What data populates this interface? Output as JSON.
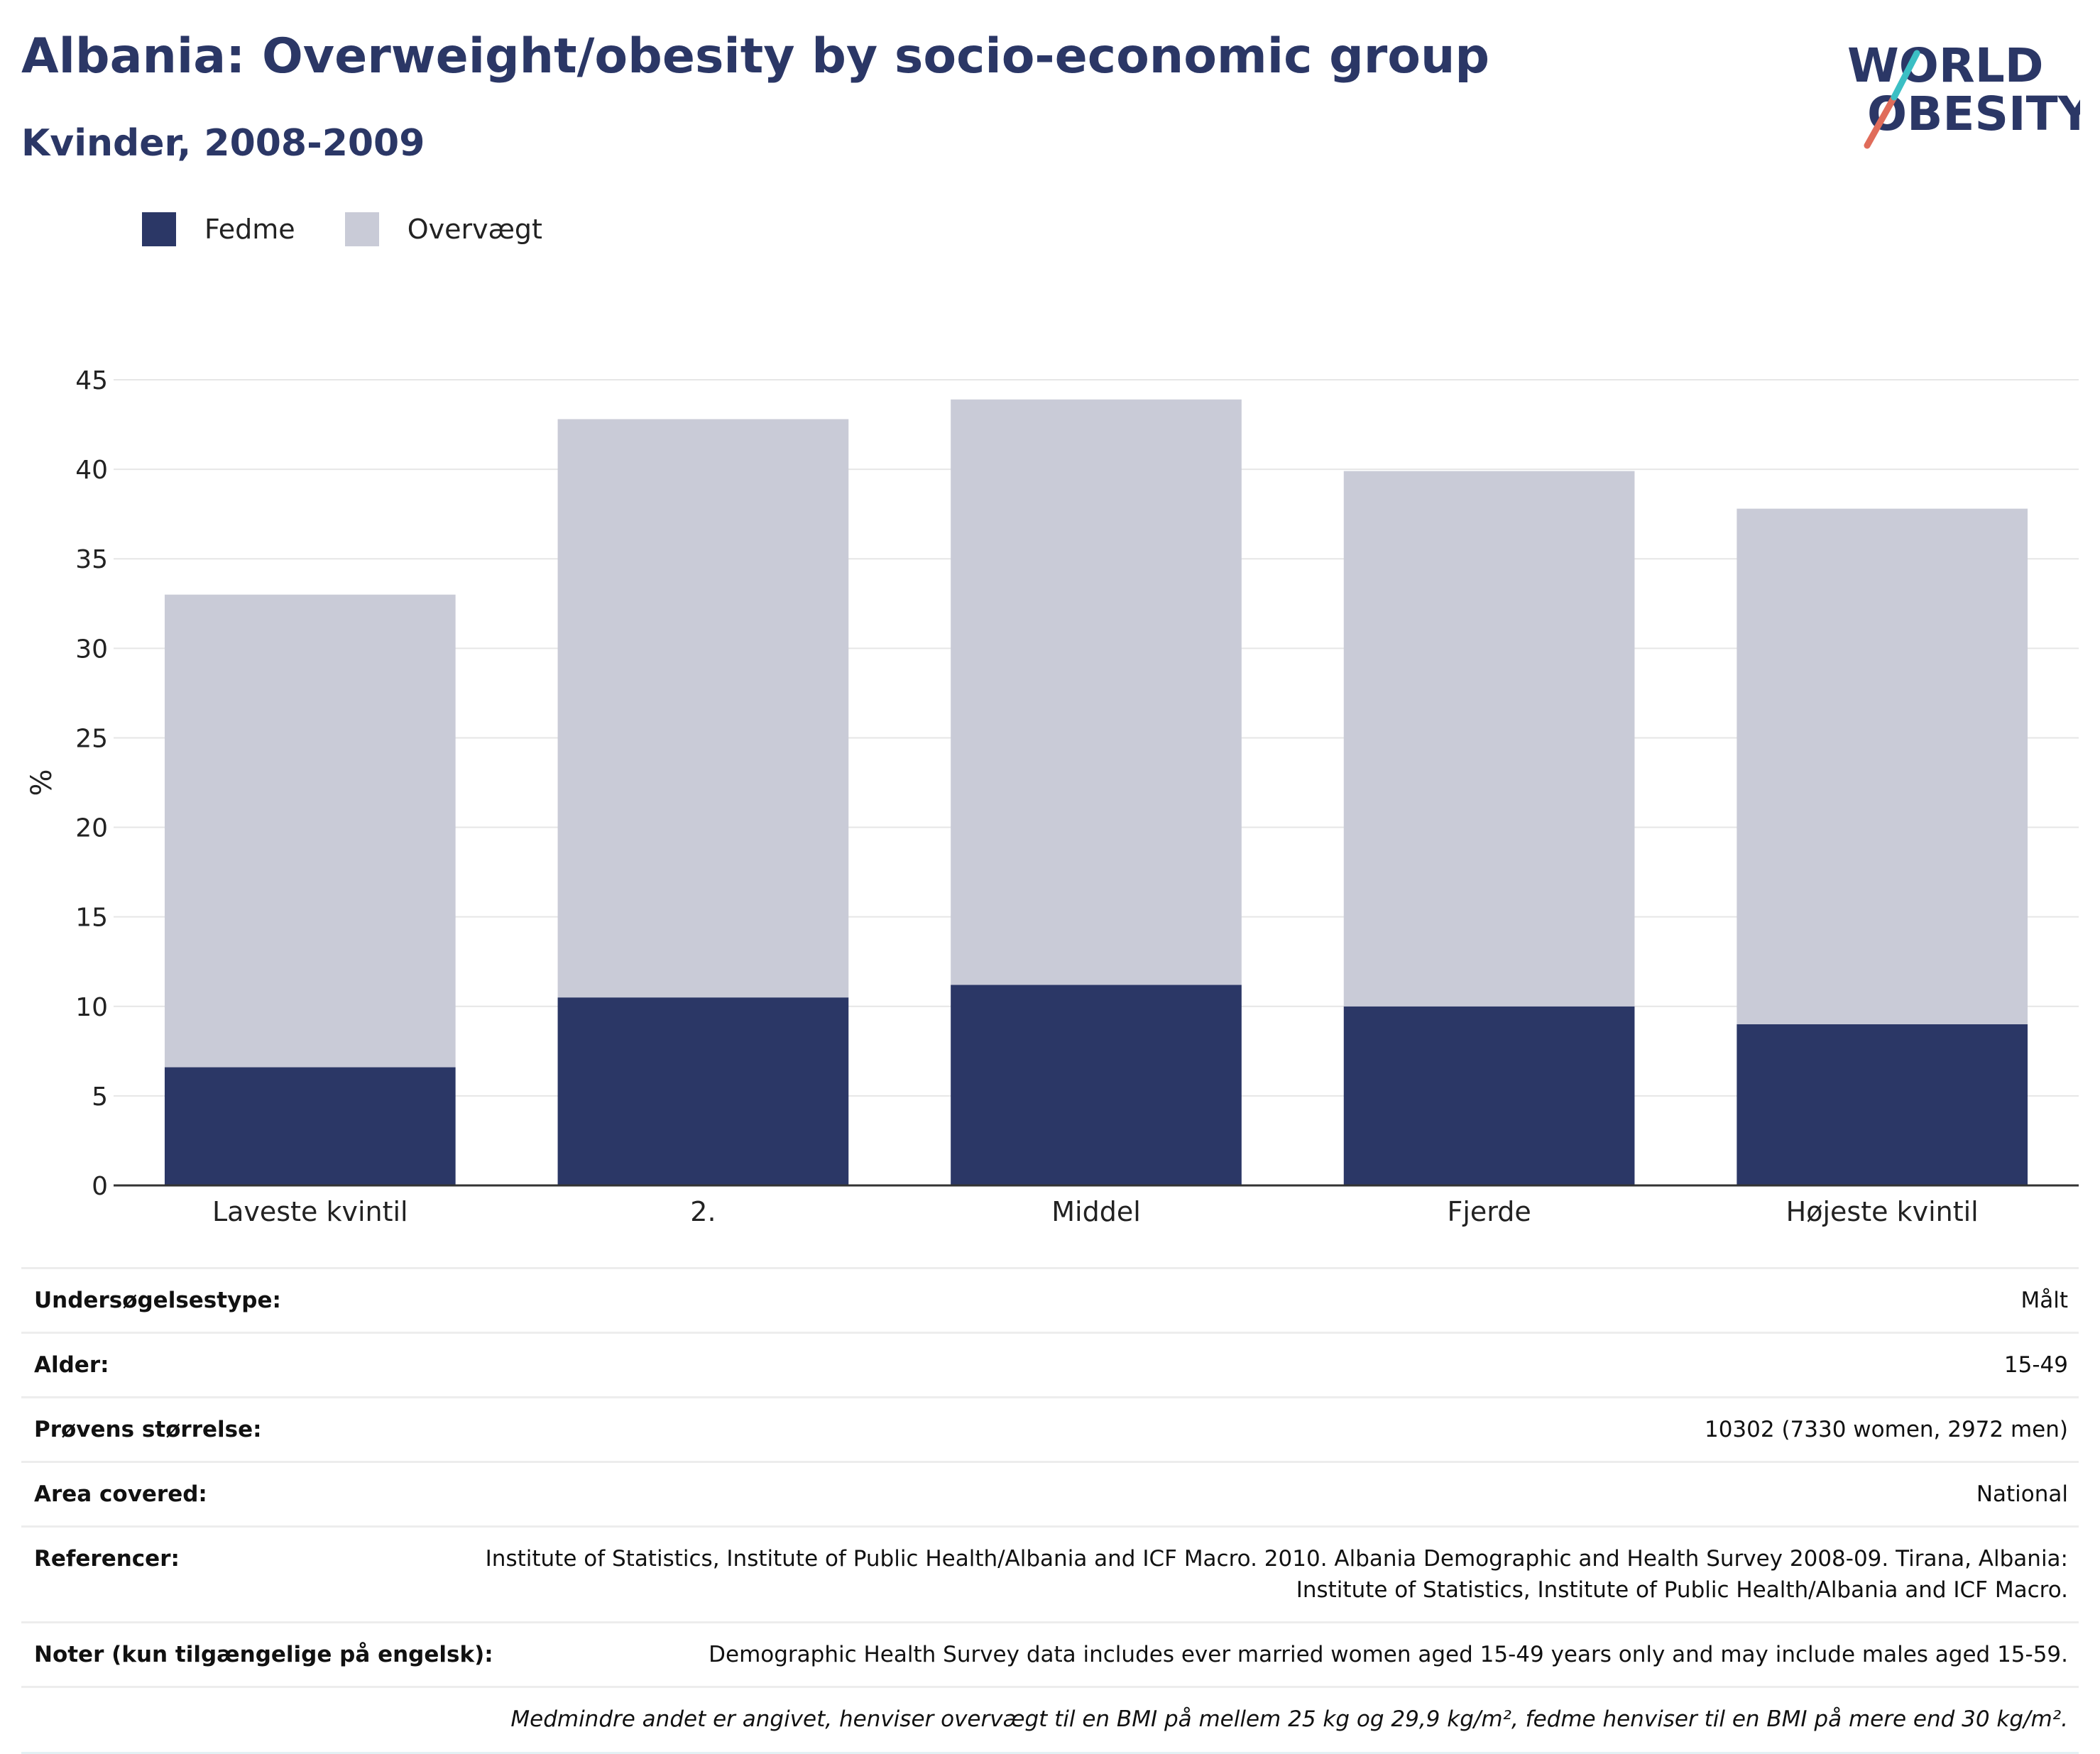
{
  "header": {
    "title": "Albania: Overweight/obesity by socio-economic group",
    "subtitle": "Kvinder, 2008-2009"
  },
  "logo": {
    "line1": "WORLD",
    "line2": "OBESITY",
    "colors": {
      "text": "#2b3766",
      "slash_red": "#e06c5a",
      "slash_teal": "#3bbfc4"
    }
  },
  "colors": {
    "fedme": "#2b3766",
    "overvaegt": "#c9cbd7",
    "grid": "#e6e6e6",
    "axis": "#333333"
  },
  "chart_data": {
    "type": "bar",
    "stacked": true,
    "categories": [
      "Laveste kvintil",
      "2.",
      "Middel",
      "Fjerde",
      "Højeste kvintil"
    ],
    "series": [
      {
        "name": "Fedme",
        "values": [
          6.6,
          10.5,
          11.2,
          10.0,
          9.0
        ]
      },
      {
        "name": "Overvægt",
        "values": [
          26.4,
          32.3,
          32.7,
          29.9,
          28.8
        ]
      }
    ],
    "ylabel": "%",
    "ylim": [
      0,
      45
    ],
    "yticks": [
      0,
      5,
      10,
      15,
      20,
      25,
      30,
      35,
      40,
      45
    ],
    "grid": true,
    "legend": "top-left"
  },
  "info": {
    "rows": [
      {
        "label": "Undersøgelsestype:",
        "value": "Målt"
      },
      {
        "label": "Alder:",
        "value": "15-49"
      },
      {
        "label": "Prøvens størrelse:",
        "value": "10302 (7330 women, 2972 men)"
      },
      {
        "label": "Area covered:",
        "value": "National"
      },
      {
        "label": "Referencer:",
        "value": "Institute of Statistics, Institute of Public Health/Albania and ICF Macro. 2010. Albania Demographic and Health Survey 2008-09. Tirana, Albania: Institute of Statistics, Institute of Public Health/Albania and ICF Macro."
      },
      {
        "label": "Noter (kun tilgængelige på engelsk):",
        "value": "Demographic Health Survey data includes ever married women aged 15-49 years only and may include males aged 15-59."
      }
    ],
    "footnote": "Medmindre andet er angivet, henviser overvægt til en BMI på mellem 25 kg og 29,9 kg/m², fedme henviser til en BMI på mere end 30 kg/m²."
  }
}
